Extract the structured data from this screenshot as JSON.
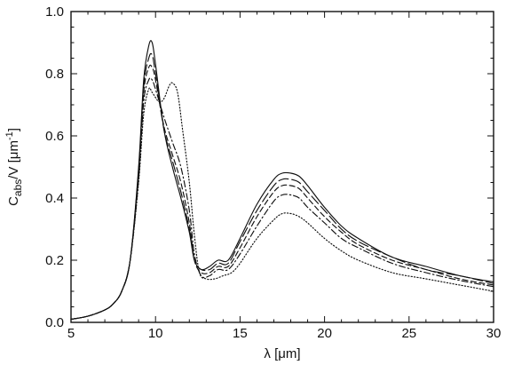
{
  "chart_data": {
    "type": "line",
    "title": "",
    "xlabel": "λ  [μm]",
    "ylabel": {
      "base": "C",
      "subscript": "abs",
      "rest": "/V  [μm",
      "superscript": "-1",
      "close": "]"
    },
    "xlim": [
      5,
      30
    ],
    "ylim": [
      0.0,
      1.0
    ],
    "x_ticks": [
      "5",
      "10",
      "15",
      "20",
      "25",
      "30"
    ],
    "y_ticks": [
      "0.0",
      "0.2",
      "0.4",
      "0.6",
      "0.8",
      "1.0"
    ],
    "grid": false,
    "legend": "none",
    "series": [
      {
        "style": "solid",
        "points": [
          [
            5,
            0.01
          ],
          [
            6,
            0.02
          ],
          [
            7,
            0.04
          ],
          [
            7.5,
            0.06
          ],
          [
            8,
            0.1
          ],
          [
            8.5,
            0.2
          ],
          [
            9,
            0.5
          ],
          [
            9.3,
            0.78
          ],
          [
            9.6,
            0.89
          ],
          [
            9.8,
            0.9
          ],
          [
            10,
            0.83
          ],
          [
            10.5,
            0.62
          ],
          [
            11,
            0.5
          ],
          [
            11.5,
            0.4
          ],
          [
            12,
            0.29
          ],
          [
            12.3,
            0.2
          ],
          [
            12.7,
            0.17
          ],
          [
            13.2,
            0.18
          ],
          [
            13.7,
            0.2
          ],
          [
            14.3,
            0.2
          ],
          [
            15,
            0.27
          ],
          [
            16,
            0.38
          ],
          [
            17,
            0.46
          ],
          [
            17.5,
            0.48
          ],
          [
            18,
            0.48
          ],
          [
            18.5,
            0.47
          ],
          [
            19,
            0.44
          ],
          [
            20,
            0.37
          ],
          [
            21,
            0.31
          ],
          [
            22,
            0.27
          ],
          [
            24,
            0.21
          ],
          [
            26,
            0.18
          ],
          [
            28,
            0.15
          ],
          [
            30,
            0.13
          ]
        ]
      },
      {
        "style": "long-dash",
        "points": [
          [
            5,
            0.01
          ],
          [
            6,
            0.02
          ],
          [
            7,
            0.04
          ],
          [
            7.5,
            0.06
          ],
          [
            8,
            0.1
          ],
          [
            8.5,
            0.2
          ],
          [
            9,
            0.49
          ],
          [
            9.3,
            0.76
          ],
          [
            9.6,
            0.85
          ],
          [
            9.8,
            0.86
          ],
          [
            10,
            0.8
          ],
          [
            10.5,
            0.62
          ],
          [
            11,
            0.52
          ],
          [
            11.5,
            0.42
          ],
          [
            12,
            0.3
          ],
          [
            12.3,
            0.2
          ],
          [
            12.7,
            0.17
          ],
          [
            13.2,
            0.17
          ],
          [
            13.7,
            0.19
          ],
          [
            14.3,
            0.19
          ],
          [
            15,
            0.26
          ],
          [
            16,
            0.36
          ],
          [
            17,
            0.44
          ],
          [
            17.5,
            0.46
          ],
          [
            18,
            0.46
          ],
          [
            18.5,
            0.45
          ],
          [
            19,
            0.42
          ],
          [
            20,
            0.36
          ],
          [
            21,
            0.3
          ],
          [
            22,
            0.26
          ],
          [
            24,
            0.21
          ],
          [
            26,
            0.17
          ],
          [
            28,
            0.15
          ],
          [
            30,
            0.125
          ]
        ]
      },
      {
        "style": "dash",
        "points": [
          [
            5,
            0.01
          ],
          [
            6,
            0.02
          ],
          [
            7,
            0.04
          ],
          [
            7.5,
            0.06
          ],
          [
            8,
            0.1
          ],
          [
            8.5,
            0.2
          ],
          [
            9,
            0.48
          ],
          [
            9.3,
            0.74
          ],
          [
            9.6,
            0.82
          ],
          [
            9.8,
            0.82
          ],
          [
            10,
            0.78
          ],
          [
            10.5,
            0.63
          ],
          [
            11,
            0.54
          ],
          [
            11.5,
            0.45
          ],
          [
            12,
            0.32
          ],
          [
            12.3,
            0.2
          ],
          [
            12.7,
            0.16
          ],
          [
            13.2,
            0.16
          ],
          [
            13.7,
            0.18
          ],
          [
            14.3,
            0.18
          ],
          [
            15,
            0.24
          ],
          [
            16,
            0.34
          ],
          [
            17,
            0.42
          ],
          [
            17.5,
            0.44
          ],
          [
            18,
            0.44
          ],
          [
            18.5,
            0.43
          ],
          [
            19,
            0.4
          ],
          [
            20,
            0.34
          ],
          [
            21,
            0.29
          ],
          [
            22,
            0.25
          ],
          [
            24,
            0.2
          ],
          [
            26,
            0.17
          ],
          [
            28,
            0.14
          ],
          [
            30,
            0.12
          ]
        ]
      },
      {
        "style": "dash-dot",
        "points": [
          [
            5,
            0.01
          ],
          [
            6,
            0.02
          ],
          [
            7,
            0.04
          ],
          [
            7.5,
            0.06
          ],
          [
            8,
            0.1
          ],
          [
            8.5,
            0.2
          ],
          [
            9,
            0.46
          ],
          [
            9.3,
            0.71
          ],
          [
            9.6,
            0.78
          ],
          [
            9.8,
            0.78
          ],
          [
            10,
            0.75
          ],
          [
            10.5,
            0.66
          ],
          [
            11,
            0.58
          ],
          [
            11.5,
            0.5
          ],
          [
            12,
            0.36
          ],
          [
            12.3,
            0.22
          ],
          [
            12.7,
            0.15
          ],
          [
            13.2,
            0.15
          ],
          [
            13.7,
            0.17
          ],
          [
            14.3,
            0.17
          ],
          [
            15,
            0.22
          ],
          [
            16,
            0.31
          ],
          [
            17,
            0.39
          ],
          [
            17.5,
            0.41
          ],
          [
            18,
            0.41
          ],
          [
            18.5,
            0.4
          ],
          [
            19,
            0.37
          ],
          [
            20,
            0.32
          ],
          [
            21,
            0.27
          ],
          [
            22,
            0.24
          ],
          [
            24,
            0.19
          ],
          [
            26,
            0.16
          ],
          [
            28,
            0.135
          ],
          [
            30,
            0.115
          ]
        ]
      },
      {
        "style": "dotted",
        "points": [
          [
            5,
            0.01
          ],
          [
            6,
            0.02
          ],
          [
            7,
            0.04
          ],
          [
            7.5,
            0.06
          ],
          [
            8,
            0.1
          ],
          [
            8.5,
            0.2
          ],
          [
            9,
            0.45
          ],
          [
            9.3,
            0.67
          ],
          [
            9.6,
            0.75
          ],
          [
            9.8,
            0.74
          ],
          [
            10.2,
            0.71
          ],
          [
            10.5,
            0.72
          ],
          [
            10.8,
            0.76
          ],
          [
            11,
            0.77
          ],
          [
            11.3,
            0.74
          ],
          [
            11.6,
            0.62
          ],
          [
            12,
            0.45
          ],
          [
            12.3,
            0.28
          ],
          [
            12.6,
            0.16
          ],
          [
            13,
            0.14
          ],
          [
            13.5,
            0.14
          ],
          [
            14,
            0.15
          ],
          [
            14.5,
            0.16
          ],
          [
            15,
            0.19
          ],
          [
            16,
            0.27
          ],
          [
            17,
            0.33
          ],
          [
            17.5,
            0.35
          ],
          [
            18,
            0.35
          ],
          [
            18.5,
            0.34
          ],
          [
            19,
            0.32
          ],
          [
            20,
            0.27
          ],
          [
            21,
            0.23
          ],
          [
            22,
            0.2
          ],
          [
            24,
            0.16
          ],
          [
            26,
            0.14
          ],
          [
            28,
            0.12
          ],
          [
            30,
            0.1
          ]
        ]
      }
    ]
  }
}
